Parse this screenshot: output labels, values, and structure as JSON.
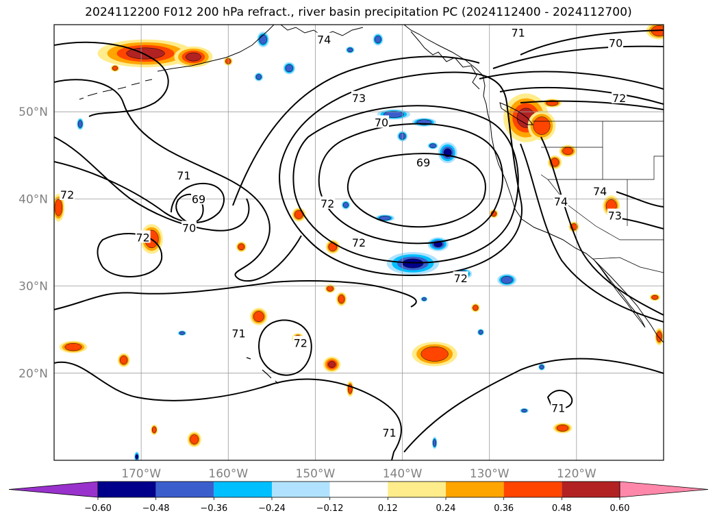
{
  "title": "2024112200 F012 200 hPa refract., river basin precipitation PC (2024112400 - 2024112700)",
  "map": {
    "extent": {
      "lon_min": -180,
      "lon_max": -110,
      "lat_min": 10,
      "lat_max": 60
    },
    "lat_labels": [
      {
        "lat": 50,
        "text": "50°N"
      },
      {
        "lat": 40,
        "text": "40°N"
      },
      {
        "lat": 30,
        "text": "30°N"
      },
      {
        "lat": 20,
        "text": "20°N"
      }
    ],
    "lon_labels": [
      {
        "lon": -170,
        "text": "170°W"
      },
      {
        "lon": -160,
        "text": "160°W"
      },
      {
        "lon": -150,
        "text": "150°W"
      },
      {
        "lon": -140,
        "text": "140°W"
      },
      {
        "lon": -130,
        "text": "130°W"
      },
      {
        "lon": -120,
        "text": "120°W"
      }
    ],
    "gridlines": true,
    "contour_labels": [
      {
        "text": "71",
        "lon": -126.7,
        "lat": 59.1
      },
      {
        "text": "70",
        "lon": -115.5,
        "lat": 57.9
      },
      {
        "text": "74",
        "lon": -149.0,
        "lat": 58.3
      },
      {
        "text": "73",
        "lon": -145.0,
        "lat": 51.6
      },
      {
        "text": "72",
        "lon": -115.1,
        "lat": 51.6
      },
      {
        "text": "70",
        "lon": -142.4,
        "lat": 48.8
      },
      {
        "text": "69",
        "lon": -137.6,
        "lat": 44.2
      },
      {
        "text": "71",
        "lon": -165.1,
        "lat": 42.7
      },
      {
        "text": "69",
        "lon": -163.4,
        "lat": 40.0
      },
      {
        "text": "72",
        "lon": -178.5,
        "lat": 40.5
      },
      {
        "text": "72",
        "lon": -148.6,
        "lat": 39.5
      },
      {
        "text": "70",
        "lon": -164.5,
        "lat": 36.7
      },
      {
        "text": "72",
        "lon": -169.8,
        "lat": 35.6
      },
      {
        "text": "72",
        "lon": -145.0,
        "lat": 35.0
      },
      {
        "text": "74",
        "lon": -117.3,
        "lat": 40.9
      },
      {
        "text": "74",
        "lon": -121.8,
        "lat": 39.7
      },
      {
        "text": "73",
        "lon": -115.6,
        "lat": 38.1
      },
      {
        "text": "72",
        "lon": -133.3,
        "lat": 30.9
      },
      {
        "text": "71",
        "lon": -158.8,
        "lat": 24.6
      },
      {
        "text": "72",
        "lon": -151.7,
        "lat": 23.5
      },
      {
        "text": "71",
        "lon": -122.1,
        "lat": 16.0
      },
      {
        "text": "71",
        "lon": -141.5,
        "lat": 13.2
      }
    ],
    "precip_blobs": [
      {
        "lon": -169.5,
        "lat": 56.7,
        "rlon": 5.5,
        "rlat": 1.6,
        "level": 0.48
      },
      {
        "lon": -164.0,
        "lat": 56.3,
        "rlon": 2.2,
        "rlat": 1.2,
        "level": 0.48
      },
      {
        "lon": -125.8,
        "lat": 49.3,
        "rlon": 2.6,
        "rlat": 2.8,
        "level": 0.48
      },
      {
        "lon": -124.0,
        "lat": 48.4,
        "rlon": 1.6,
        "rlat": 1.7,
        "level": 0.36
      },
      {
        "lon": -179.5,
        "lat": 39.0,
        "rlon": 0.7,
        "rlat": 1.6,
        "level": 0.36
      },
      {
        "lon": -168.8,
        "lat": 35.4,
        "rlon": 1.3,
        "rlat": 1.7,
        "level": 0.36
      },
      {
        "lon": -151.9,
        "lat": 38.2,
        "rlon": 0.8,
        "rlat": 0.8,
        "level": 0.36
      },
      {
        "lon": -148.0,
        "lat": 34.5,
        "rlon": 0.8,
        "rlat": 0.8,
        "level": 0.36
      },
      {
        "lon": -158.5,
        "lat": 34.5,
        "rlon": 0.6,
        "rlat": 0.6,
        "level": 0.36
      },
      {
        "lon": -147.0,
        "lat": 28.5,
        "rlon": 0.6,
        "rlat": 0.8,
        "level": 0.36
      },
      {
        "lon": -156.5,
        "lat": 26.5,
        "rlon": 1.0,
        "rlat": 1.0,
        "level": 0.36
      },
      {
        "lon": -152.0,
        "lat": 24.0,
        "rlon": 0.7,
        "rlat": 0.6,
        "level": 0.36
      },
      {
        "lon": -177.8,
        "lat": 23.0,
        "rlon": 1.6,
        "rlat": 0.7,
        "level": 0.36
      },
      {
        "lon": -172.0,
        "lat": 21.5,
        "rlon": 0.7,
        "rlat": 0.8,
        "level": 0.36
      },
      {
        "lon": -148.1,
        "lat": 21.0,
        "rlon": 1.0,
        "rlat": 0.9,
        "level": 0.48
      },
      {
        "lon": -146.0,
        "lat": 18.2,
        "rlon": 0.4,
        "rlat": 0.9,
        "level": 0.36
      },
      {
        "lon": -136.3,
        "lat": 22.2,
        "rlon": 2.6,
        "rlat": 1.4,
        "level": 0.36
      },
      {
        "lon": -131.6,
        "lat": 27.5,
        "rlon": 0.5,
        "rlat": 0.5,
        "level": 0.36
      },
      {
        "lon": -116.0,
        "lat": 39.2,
        "rlon": 1.0,
        "rlat": 1.2,
        "level": 0.36
      },
      {
        "lon": -120.3,
        "lat": 36.8,
        "rlon": 0.6,
        "rlat": 0.6,
        "level": 0.36
      },
      {
        "lon": -121.0,
        "lat": 45.5,
        "rlon": 1.0,
        "rlat": 0.7,
        "level": 0.36
      },
      {
        "lon": -122.5,
        "lat": 44.2,
        "rlon": 0.8,
        "rlat": 0.8,
        "level": 0.36
      },
      {
        "lon": -129.5,
        "lat": 38.3,
        "rlon": 0.5,
        "rlat": 0.5,
        "level": 0.36
      },
      {
        "lon": -122.8,
        "lat": 51.0,
        "rlon": 1.1,
        "rlat": 0.5,
        "level": 0.36
      },
      {
        "lon": -110.5,
        "lat": 59.3,
        "rlon": 1.5,
        "rlat": 1.0,
        "level": 0.36
      },
      {
        "lon": -121.6,
        "lat": 13.7,
        "rlon": 1.1,
        "rlat": 0.6,
        "level": 0.36
      },
      {
        "lon": -163.9,
        "lat": 12.4,
        "rlon": 0.8,
        "rlat": 0.9,
        "level": 0.36
      },
      {
        "lon": -168.5,
        "lat": 13.5,
        "rlon": 0.4,
        "rlat": 0.6,
        "level": 0.36
      },
      {
        "lon": -111.0,
        "lat": 28.7,
        "rlon": 0.6,
        "rlat": 0.4,
        "level": 0.36
      },
      {
        "lon": -110.5,
        "lat": 24.2,
        "rlon": 0.5,
        "rlat": 1.0,
        "level": 0.36
      },
      {
        "lon": -148.3,
        "lat": 29.7,
        "rlon": 0.6,
        "rlat": 0.5,
        "level": 0.36
      },
      {
        "lon": -160.0,
        "lat": 55.8,
        "rlon": 0.5,
        "rlat": 0.5,
        "level": 0.36
      },
      {
        "lon": -173.0,
        "lat": 55.0,
        "rlon": 0.5,
        "rlat": 0.4,
        "level": 0.36
      },
      {
        "lon": -138.8,
        "lat": 32.6,
        "rlon": 3.0,
        "rlat": 1.3,
        "level": -0.48
      },
      {
        "lon": -135.9,
        "lat": 34.8,
        "rlon": 1.2,
        "rlat": 0.8,
        "level": -0.48
      },
      {
        "lon": -134.8,
        "lat": 45.3,
        "rlon": 1.1,
        "rlat": 1.2,
        "level": -0.48
      },
      {
        "lon": -141.0,
        "lat": 49.7,
        "rlon": 1.9,
        "rlat": 0.6,
        "level": -0.36
      },
      {
        "lon": -137.5,
        "lat": 48.8,
        "rlon": 1.4,
        "rlat": 0.5,
        "level": -0.36
      },
      {
        "lon": -140.0,
        "lat": 47.2,
        "rlon": 0.6,
        "rlat": 0.6,
        "level": -0.36
      },
      {
        "lon": -136.5,
        "lat": 46.1,
        "rlon": 0.6,
        "rlat": 0.4,
        "level": -0.36
      },
      {
        "lon": -142.0,
        "lat": 37.8,
        "rlon": 1.1,
        "rlat": 0.4,
        "level": -0.36
      },
      {
        "lon": -146.5,
        "lat": 39.3,
        "rlon": 0.5,
        "rlat": 0.5,
        "level": -0.36
      },
      {
        "lon": -133.0,
        "lat": 31.4,
        "rlon": 1.0,
        "rlat": 0.6,
        "level": -0.36
      },
      {
        "lon": -128.0,
        "lat": 30.7,
        "rlon": 1.1,
        "rlat": 0.7,
        "level": -0.36
      },
      {
        "lon": -153.0,
        "lat": 55.0,
        "rlon": 0.7,
        "rlat": 0.7,
        "level": -0.36
      },
      {
        "lon": -156.0,
        "lat": 58.3,
        "rlon": 0.7,
        "rlat": 0.9,
        "level": -0.36
      },
      {
        "lon": -142.8,
        "lat": 58.3,
        "rlon": 0.6,
        "rlat": 0.7,
        "level": -0.36
      },
      {
        "lon": -146.0,
        "lat": 57.1,
        "rlon": 0.5,
        "rlat": 0.4,
        "level": -0.36
      },
      {
        "lon": -156.5,
        "lat": 54.0,
        "rlon": 0.5,
        "rlat": 0.5,
        "level": -0.36
      },
      {
        "lon": -177.0,
        "lat": 48.6,
        "rlon": 0.4,
        "rlat": 0.7,
        "level": -0.36
      },
      {
        "lon": -165.3,
        "lat": 24.6,
        "rlon": 0.5,
        "rlat": 0.3,
        "level": -0.36
      },
      {
        "lon": -170.5,
        "lat": 10.4,
        "rlon": 0.3,
        "rlat": 0.6,
        "level": -0.48
      },
      {
        "lon": -136.3,
        "lat": 12.0,
        "rlon": 0.3,
        "rlat": 0.7,
        "level": -0.36
      },
      {
        "lon": -124.0,
        "lat": 20.7,
        "rlon": 0.4,
        "rlat": 0.4,
        "level": -0.36
      },
      {
        "lon": -126.0,
        "lat": 15.7,
        "rlon": 0.5,
        "rlat": 0.3,
        "level": -0.36
      },
      {
        "lon": -131.0,
        "lat": 24.7,
        "rlon": 0.4,
        "rlat": 0.4,
        "level": -0.36
      },
      {
        "lon": -137.5,
        "lat": 28.5,
        "rlon": 0.4,
        "rlat": 0.3,
        "level": -0.36
      }
    ]
  },
  "colorbar": {
    "levels": [
      -0.6,
      -0.48,
      -0.36,
      -0.24,
      -0.12,
      0.12,
      0.24,
      0.36,
      0.48,
      0.6
    ],
    "tick_labels": [
      "−0.60",
      "−0.48",
      "−0.36",
      "−0.24",
      "−0.12",
      "0.12",
      "0.24",
      "0.36",
      "0.48",
      "0.60"
    ],
    "under_color": "#9932cc",
    "over_color": "#ff88aa",
    "colors": [
      "#00008b",
      "#3a5fcd",
      "#00bfff",
      "#b0e2ff",
      "#ffffff",
      "#ffec8b",
      "#ffa500",
      "#ff4500",
      "#b22222"
    ]
  }
}
